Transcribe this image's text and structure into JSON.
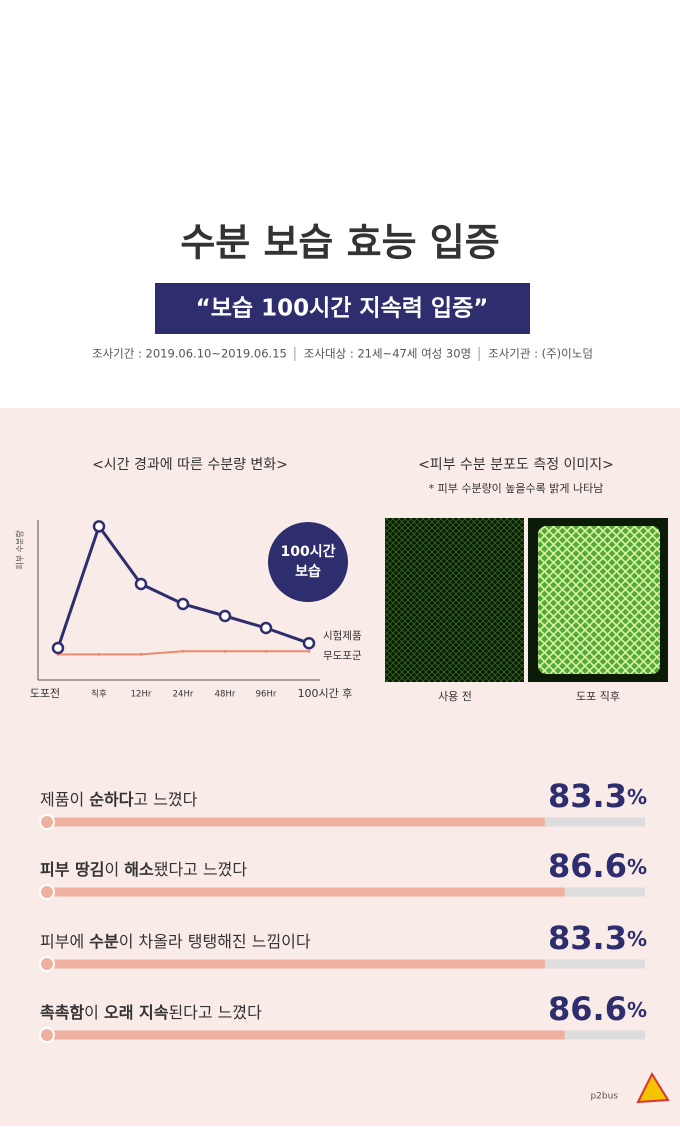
{
  "header": {
    "title": "수분 보습 효능 입증",
    "banner": "“보습 100시간 지속력 입증”",
    "survey": [
      "조사기간 : 2019.06.10~2019.06.15",
      "조사대상 : 21세~47세 여성 30명",
      "조사기관 : (주)이노덤"
    ]
  },
  "chart_data": [
    {
      "type": "line",
      "title": "<시간 경과에 따른 수분량 변화>",
      "y_label": "피부 수분량",
      "categories": [
        "도포전",
        "직후",
        "12Hr",
        "24Hr",
        "48Hr",
        "96Hr",
        "100시간 후"
      ],
      "ylim": [
        0,
        100
      ],
      "series": [
        {
          "name": "시험제품",
          "color": "#2e2d6e",
          "values": [
            20,
            96,
            60,
            47.5,
            40,
            32.5,
            23
          ]
        },
        {
          "name": "무도포군",
          "color": "#f08a6e",
          "values": [
            16,
            16,
            16,
            18,
            18,
            18,
            18
          ]
        }
      ],
      "badge": [
        "100시간",
        "보습"
      ]
    },
    {
      "type": "hbar",
      "xlim": [
        0,
        100
      ],
      "color": "#eeb1a0",
      "track": "#dddddd",
      "categories": [
        [
          {
            "text": "제품이 ",
            "bold": false
          },
          {
            "text": "순하다",
            "bold": true
          },
          {
            "text": "고 느꼈다",
            "bold": false
          }
        ],
        [
          {
            "text": "피부 땅김",
            "bold": true
          },
          {
            "text": "이 ",
            "bold": false
          },
          {
            "text": "해소",
            "bold": true
          },
          {
            "text": "됐다고 느꼈다",
            "bold": false
          }
        ],
        [
          {
            "text": "피부에 ",
            "bold": false
          },
          {
            "text": "수분",
            "bold": true
          },
          {
            "text": "이 차올라 탱탱해진 느낌이다",
            "bold": false
          }
        ],
        [
          {
            "text": "촉촉함",
            "bold": true
          },
          {
            "text": "이 ",
            "bold": false
          },
          {
            "text": "오래 지속",
            "bold": true
          },
          {
            "text": "된다고 느꼈다",
            "bold": false
          }
        ]
      ],
      "values": [
        83.3,
        86.6,
        83.3,
        86.6
      ],
      "value_labels": [
        "83.3%",
        "86.6%",
        "83.3%",
        "86.6%"
      ]
    }
  ],
  "images": {
    "title": "<피부 수분 분포도 측정 이미지>",
    "note": "* 피부 수분량이 높을수록 밝게 나타남",
    "captions": [
      "사용 전",
      "도포 직후"
    ]
  },
  "watermark": "p2bus"
}
